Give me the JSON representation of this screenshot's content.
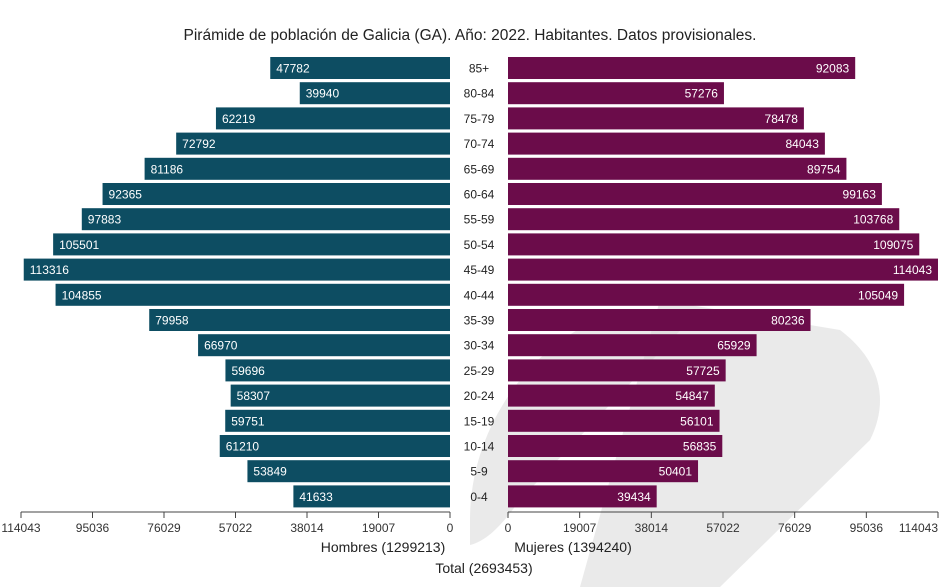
{
  "title": "Pirámide de población de Galicia (GA). Año: 2022. Habitantes. Datos provisionales.",
  "colors": {
    "men": "#0d4d62",
    "women": "#6b0c4a",
    "watermark": "#d9d9d9"
  },
  "chart_data": {
    "type": "bar",
    "orientation": "horizontal-population-pyramid",
    "categories": [
      "85+",
      "80-84",
      "75-79",
      "70-74",
      "65-69",
      "60-64",
      "55-59",
      "50-54",
      "45-49",
      "40-44",
      "35-39",
      "30-34",
      "25-29",
      "20-24",
      "15-19",
      "10-14",
      "5-9",
      "0-4"
    ],
    "series": [
      {
        "name": "Hombres",
        "values": [
          47782,
          39940,
          62219,
          72792,
          81186,
          92365,
          97883,
          105501,
          113316,
          104855,
          79958,
          66970,
          59696,
          58307,
          59751,
          61210,
          53849,
          41633
        ]
      },
      {
        "name": "Mujeres",
        "values": [
          92083,
          57276,
          78478,
          84043,
          89754,
          99163,
          103768,
          109075,
          114043,
          105049,
          80236,
          65929,
          57725,
          54847,
          56101,
          56835,
          50401,
          39434
        ]
      }
    ],
    "x_ticks": [
      "114043",
      "95036",
      "76029",
      "57022",
      "38014",
      "19007",
      "0"
    ],
    "xlim": [
      0,
      114043
    ],
    "legend_men": "Hombres (1299213)",
    "legend_women": "Mujeres (1394240)",
    "total": "Total (2693453)"
  }
}
